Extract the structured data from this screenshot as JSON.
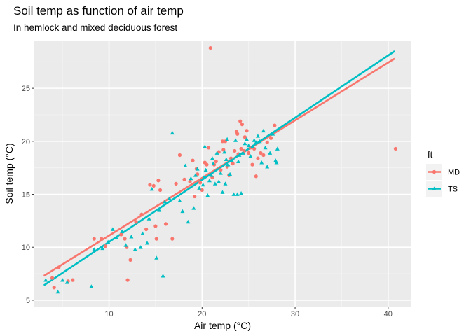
{
  "chart_data": {
    "type": "scatter",
    "title": "Soil temp as function of air temp",
    "subtitle": "In hemlock and mixed deciduous forest",
    "xlabel": "Air temp (°C)",
    "ylabel": "Soil temp (°C)",
    "xlim": [
      1.9,
      42.5
    ],
    "ylim": [
      4.4,
      29.5
    ],
    "x_ticks": [
      10,
      20,
      30,
      40
    ],
    "y_ticks": [
      5,
      10,
      15,
      20,
      25
    ],
    "grid": true,
    "legend": {
      "title": "ft",
      "position": "right"
    },
    "series": [
      {
        "name": "MD",
        "color": "#F8766D",
        "marker": "circle",
        "fit": {
          "x": [
            3.0,
            40.7
          ],
          "y": [
            7.3,
            27.8
          ]
        },
        "points": [
          [
            3.9,
            7.1
          ],
          [
            4.1,
            6.2
          ],
          [
            4.6,
            8.1
          ],
          [
            5.6,
            6.8
          ],
          [
            6.1,
            6.9
          ],
          [
            8.4,
            10.8
          ],
          [
            9.2,
            10.8
          ],
          [
            9.6,
            10.1
          ],
          [
            11.3,
            11.2
          ],
          [
            11.7,
            10.8
          ],
          [
            11.9,
            10.0
          ],
          [
            12.0,
            6.9
          ],
          [
            12.3,
            8.8
          ],
          [
            12.9,
            12.4
          ],
          [
            13.5,
            13.1
          ],
          [
            14.0,
            11.7
          ],
          [
            14.4,
            15.9
          ],
          [
            14.8,
            15.8
          ],
          [
            15.0,
            12.0
          ],
          [
            15.1,
            10.8
          ],
          [
            15.3,
            16.3
          ],
          [
            15.5,
            15.4
          ],
          [
            16.1,
            12.2
          ],
          [
            16.8,
            10.8
          ],
          [
            17.2,
            16.0
          ],
          [
            17.6,
            18.7
          ],
          [
            18.1,
            16.4
          ],
          [
            18.7,
            16.2
          ],
          [
            19.0,
            18.2
          ],
          [
            19.2,
            14.8
          ],
          [
            19.4,
            17.4
          ],
          [
            19.5,
            16.9
          ],
          [
            19.8,
            16.1
          ],
          [
            20.0,
            15.4
          ],
          [
            20.3,
            18.0
          ],
          [
            20.5,
            17.8
          ],
          [
            20.7,
            19.4
          ],
          [
            20.9,
            28.8
          ],
          [
            21.1,
            16.6
          ],
          [
            21.3,
            17.8
          ],
          [
            21.5,
            18.1
          ],
          [
            21.8,
            19.0
          ],
          [
            22.0,
            17.3
          ],
          [
            22.2,
            20.0
          ],
          [
            22.5,
            20.0
          ],
          [
            22.7,
            17.6
          ],
          [
            22.9,
            16.8
          ],
          [
            23.1,
            18.4
          ],
          [
            23.3,
            17.9
          ],
          [
            23.5,
            19.1
          ],
          [
            23.7,
            20.9
          ],
          [
            23.9,
            18.8
          ],
          [
            24.1,
            21.9
          ],
          [
            24.3,
            21.6
          ],
          [
            24.5,
            19.1
          ],
          [
            24.6,
            20.4
          ],
          [
            24.8,
            21.0
          ],
          [
            25.0,
            18.9
          ],
          [
            25.2,
            19.4
          ],
          [
            25.4,
            17.8
          ],
          [
            25.6,
            19.3
          ],
          [
            25.8,
            16.7
          ],
          [
            26.0,
            18.4
          ],
          [
            26.3,
            18.9
          ],
          [
            26.6,
            18.7
          ],
          [
            27.0,
            19.9
          ],
          [
            27.4,
            20.3
          ],
          [
            27.8,
            21.5
          ],
          [
            23.8,
            20.7
          ],
          [
            24.2,
            19.3
          ],
          [
            22.3,
            19.2
          ],
          [
            40.8,
            19.3
          ]
        ]
      },
      {
        "name": "TS",
        "color": "#00BFC4",
        "marker": "triangle",
        "fit": {
          "x": [
            3.0,
            40.7
          ],
          "y": [
            6.4,
            28.5
          ]
        },
        "points": [
          [
            3.2,
            6.9
          ],
          [
            4.5,
            5.8
          ],
          [
            5.0,
            6.9
          ],
          [
            5.5,
            6.7
          ],
          [
            8.1,
            6.3
          ],
          [
            8.4,
            9.8
          ],
          [
            9.3,
            9.9
          ],
          [
            9.9,
            10.5
          ],
          [
            10.4,
            11.7
          ],
          [
            10.8,
            10.9
          ],
          [
            11.4,
            11.5
          ],
          [
            11.8,
            10.2
          ],
          [
            12.4,
            11.0
          ],
          [
            12.8,
            9.8
          ],
          [
            13.4,
            10.0
          ],
          [
            13.6,
            11.3
          ],
          [
            14.1,
            10.4
          ],
          [
            14.3,
            12.7
          ],
          [
            14.6,
            15.5
          ],
          [
            15.1,
            9.0
          ],
          [
            15.4,
            13.5
          ],
          [
            15.8,
            7.3
          ],
          [
            16.0,
            14.3
          ],
          [
            16.5,
            14.6
          ],
          [
            16.8,
            20.8
          ],
          [
            17.6,
            14.4
          ],
          [
            17.9,
            13.4
          ],
          [
            18.2,
            17.7
          ],
          [
            18.5,
            12.4
          ],
          [
            18.8,
            16.5
          ],
          [
            19.1,
            13.7
          ],
          [
            19.3,
            16.8
          ],
          [
            19.5,
            17.4
          ],
          [
            19.7,
            15.6
          ],
          [
            20.1,
            15.9
          ],
          [
            20.3,
            19.5
          ],
          [
            20.4,
            17.3
          ],
          [
            20.6,
            14.9
          ],
          [
            20.8,
            16.3
          ],
          [
            21.0,
            16.8
          ],
          [
            21.2,
            17.9
          ],
          [
            21.4,
            16.0
          ],
          [
            21.6,
            18.9
          ],
          [
            21.8,
            16.2
          ],
          [
            22.0,
            17.0
          ],
          [
            22.2,
            15.2
          ],
          [
            22.4,
            19.0
          ],
          [
            22.6,
            18.3
          ],
          [
            22.8,
            17.8
          ],
          [
            23.0,
            16.9
          ],
          [
            23.2,
            18.2
          ],
          [
            23.4,
            15.0
          ],
          [
            23.6,
            20.1
          ],
          [
            23.8,
            15.0
          ],
          [
            24.0,
            18.7
          ],
          [
            24.2,
            15.1
          ],
          [
            24.4,
            18.9
          ],
          [
            24.6,
            19.8
          ],
          [
            24.8,
            20.2
          ],
          [
            25.0,
            19.6
          ],
          [
            25.2,
            18.6
          ],
          [
            25.4,
            19.5
          ],
          [
            25.6,
            20.1
          ],
          [
            25.8,
            19.9
          ],
          [
            26.0,
            20.5
          ],
          [
            26.2,
            20.0
          ],
          [
            26.4,
            18.0
          ],
          [
            26.6,
            21.0
          ],
          [
            26.8,
            19.4
          ],
          [
            27.0,
            17.6
          ],
          [
            27.3,
            18.9
          ],
          [
            27.6,
            20.7
          ],
          [
            27.9,
            18.2
          ],
          [
            28.1,
            19.3
          ],
          [
            28.0,
            18.0
          ],
          [
            23.9,
            18.1
          ],
          [
            22.7,
            20.2
          ],
          [
            21.1,
            18.4
          ],
          [
            20.2,
            16.6
          ],
          [
            22.5,
            16.0
          ]
        ]
      }
    ]
  }
}
